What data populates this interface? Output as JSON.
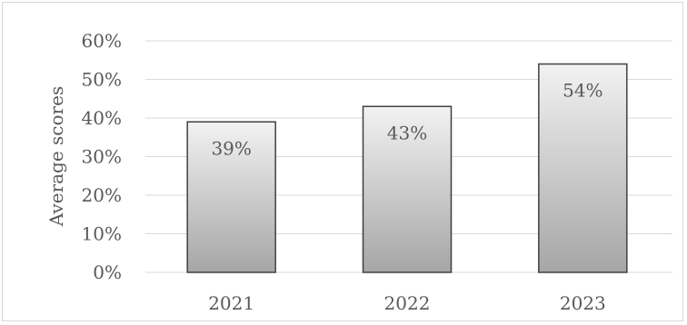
{
  "chart_data": {
    "type": "bar",
    "categories": [
      "2021",
      "2022",
      "2023"
    ],
    "values": [
      39,
      43,
      54
    ],
    "data_labels": [
      "39%",
      "43%",
      "54%"
    ],
    "title": "",
    "xlabel": "",
    "ylabel": "Average scores",
    "ylim": [
      0,
      60
    ],
    "y_ticks": [
      "0%",
      "10%",
      "20%",
      "30%",
      "40%",
      "50%",
      "60%"
    ],
    "grid": true,
    "legend": "none"
  },
  "colors": {
    "grid": "#d9d9d9",
    "bar_top": "#f2f2f2",
    "bar_bottom": "#a6a6a6",
    "bar_border": "#404040",
    "text": "#595959"
  }
}
